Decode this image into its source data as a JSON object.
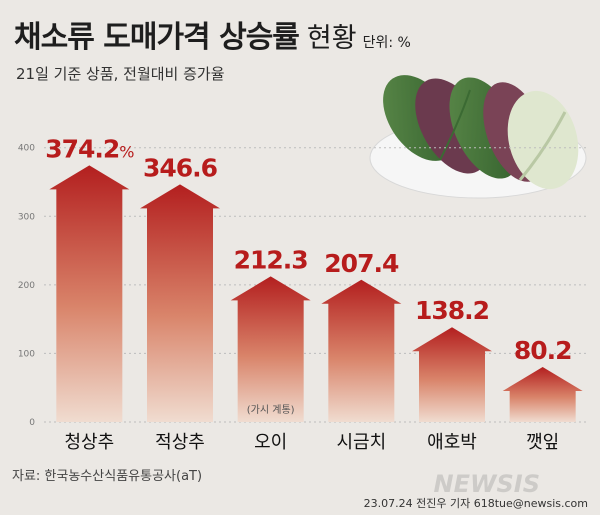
{
  "title": {
    "main": "채소류 도매가격 상승률",
    "accent": "현황",
    "unit": "단위: %"
  },
  "subtitle": "21일 기준 상품, 전월대비 증가율",
  "source": "자료: 한국농수산식품유통공사(aT)",
  "credit": "23.07.24 전진우 기자 618tue@newsis.com",
  "watermark": "NEWSIS",
  "illustration": {
    "icon": "cabbage-leaves-illustration"
  },
  "colors": {
    "background": "#ebe8e4",
    "bar_top": "#b31f1f",
    "bar_bottom": "#f0dcd0",
    "value_label": "#b71c1c",
    "grid": "#bdbdbd"
  },
  "chart_data": {
    "type": "bar",
    "title": "채소류 도매가격 상승률 현황",
    "subtitle": "21일 기준 상품, 전월대비 증가율",
    "unit": "%",
    "categories": [
      "청상추",
      "적상추",
      "오이",
      "시금치",
      "애호박",
      "깻잎"
    ],
    "values": [
      374.2,
      346.6,
      212.3,
      207.4,
      138.2,
      80.2
    ],
    "value_labels": [
      "374.2",
      "346.6",
      "212.3",
      "207.4",
      "138.2",
      "80.2"
    ],
    "first_value_suffix": "%",
    "notes": [
      {
        "category": "오이",
        "text": "(가시 계통)"
      }
    ],
    "yticks": [
      0,
      100,
      200,
      300,
      400
    ],
    "ylim": [
      0,
      420
    ],
    "grid": true
  }
}
